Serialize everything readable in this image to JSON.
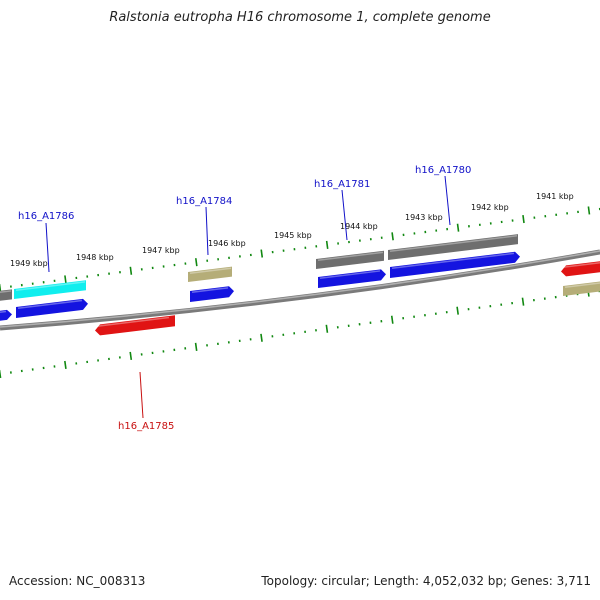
{
  "title": "Ralstonia eutropha H16 chromosome 1, complete genome",
  "footer": {
    "accession": "Accession: NC_008313",
    "topology": "Topology: circular; Length: 4,052,032 bp; Genes: 3,711"
  },
  "colors": {
    "backbone": "#7a7a7a",
    "tick": "#118811",
    "label_forward": "#1010c8",
    "label_reverse": "#c81010",
    "gray_feature": "#6e6e6e",
    "cyan_feature": "#10eeee",
    "olive_feature": "#b5ad78",
    "blue_feature": "#1414e0",
    "red_feature": "#e01414"
  },
  "scale": {
    "outer_ring_labels": [
      "1949 kbp",
      "1948 kbp",
      "1947 kbp",
      "1946 kbp",
      "1945 kbp",
      "1944 kbp",
      "1943 kbp",
      "1942 kbp",
      "1941 kbp"
    ]
  },
  "gene_labels": [
    {
      "text": "h16_A1786",
      "strand": "forward"
    },
    {
      "text": "h16_A1784",
      "strand": "forward"
    },
    {
      "text": "h16_A1781",
      "strand": "forward"
    },
    {
      "text": "h16_A1780",
      "strand": "forward"
    },
    {
      "text": "h16_A1785",
      "strand": "reverse"
    }
  ],
  "features": [
    {
      "name": "gray-feature",
      "ring": "outer-top",
      "color": "gray_feature"
    },
    {
      "name": "cyan-feature",
      "ring": "outer-top",
      "color": "cyan_feature"
    },
    {
      "name": "olive-feature",
      "ring": "outer-top",
      "color": "olive_feature"
    },
    {
      "name": "gray-feature",
      "ring": "outer-top",
      "color": "gray_feature"
    },
    {
      "name": "gray-feature",
      "ring": "outer-top",
      "color": "gray_feature"
    },
    {
      "name": "olive-feature",
      "ring": "outer-top",
      "color": "olive_feature"
    },
    {
      "name": "blue-gene",
      "ring": "forward",
      "color": "blue_feature",
      "label": "h16_A1786"
    },
    {
      "name": "blue-gene",
      "ring": "forward",
      "color": "blue_feature",
      "label": "h16_A1784"
    },
    {
      "name": "blue-gene",
      "ring": "forward",
      "color": "blue_feature",
      "label": "h16_A1781"
    },
    {
      "name": "blue-gene",
      "ring": "forward",
      "color": "blue_feature",
      "label": "h16_A1780"
    },
    {
      "name": "blue-gene",
      "ring": "forward",
      "color": "blue_feature"
    },
    {
      "name": "red-gene",
      "ring": "reverse",
      "color": "red_feature",
      "label": "h16_A1785"
    },
    {
      "name": "red-gene",
      "ring": "reverse",
      "color": "red_feature"
    }
  ]
}
